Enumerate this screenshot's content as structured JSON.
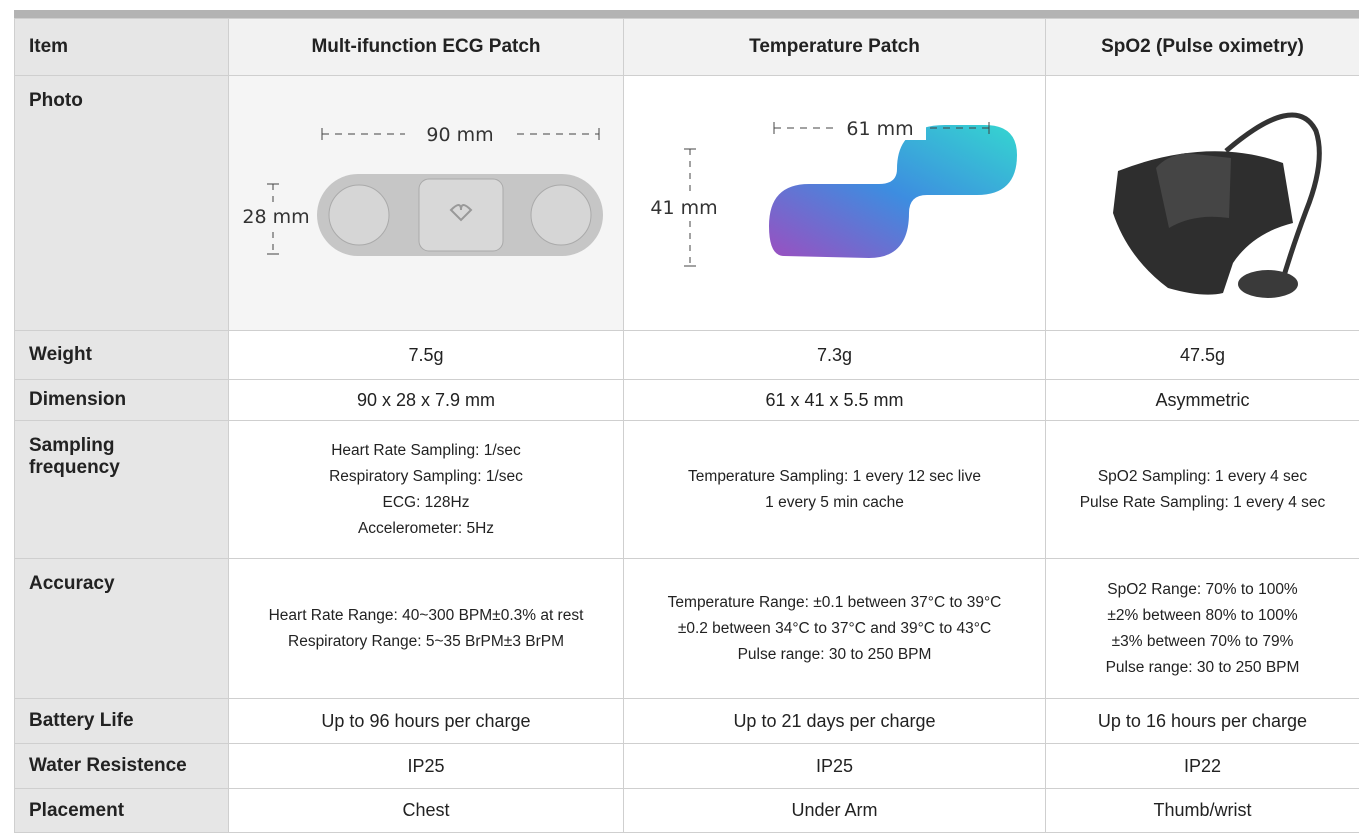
{
  "table": {
    "header": [
      "Item",
      "Mult-ifunction ECG Patch",
      "Temperature Patch",
      "SpO2 (Pulse oximetry)"
    ],
    "photo": {
      "label": "Photo",
      "ecg_length": "90 mm",
      "ecg_width": "28 mm",
      "temp_length": "61 mm",
      "temp_width": "41 mm"
    },
    "rows": [
      [
        "Weight",
        "7.5g",
        "7.3g",
        "47.5g"
      ],
      [
        "Dimension",
        "90 x 28 x 7.9 mm",
        "61 x 41 x 5.5 mm",
        "Asymmetric"
      ],
      [
        [
          "Sampling",
          "frequency"
        ],
        [
          "Heart Rate Sampling: 1/sec",
          "Respiratory Sampling: 1/sec",
          "ECG: 128Hz",
          "Accelerometer: 5Hz"
        ],
        [
          "Temperature Sampling: 1 every 12 sec live",
          "1 every 5 min cache"
        ],
        [
          "SpO2 Sampling: 1 every 4 sec",
          "Pulse Rate Sampling: 1 every 4 sec"
        ]
      ],
      [
        "Accuracy",
        [
          "Heart Rate Range: 40~300 BPM±0.3% at rest",
          "Respiratory Range: 5~35 BrPM±3 BrPM"
        ],
        [
          "Temperature Range: ±0.1 between 37°C to 39°C",
          "±0.2 between 34°C to 37°C and 39°C to 43°C",
          "Pulse range: 30 to 250 BPM"
        ],
        [
          "SpO2 Range: 70% to 100%",
          "±2% between 80% to 100%",
          "±3% between 70% to 79%",
          "Pulse range: 30 to 250 BPM"
        ]
      ],
      [
        "Battery Life",
        "Up to 96 hours per charge",
        "Up to 21 days per charge",
        "Up to 16 hours per charge"
      ],
      [
        "Water Resistence",
        "IP25",
        "IP25",
        "IP22"
      ],
      [
        "Placement",
        "Chest",
        "Under Arm",
        "Thumb/wrist"
      ]
    ]
  }
}
